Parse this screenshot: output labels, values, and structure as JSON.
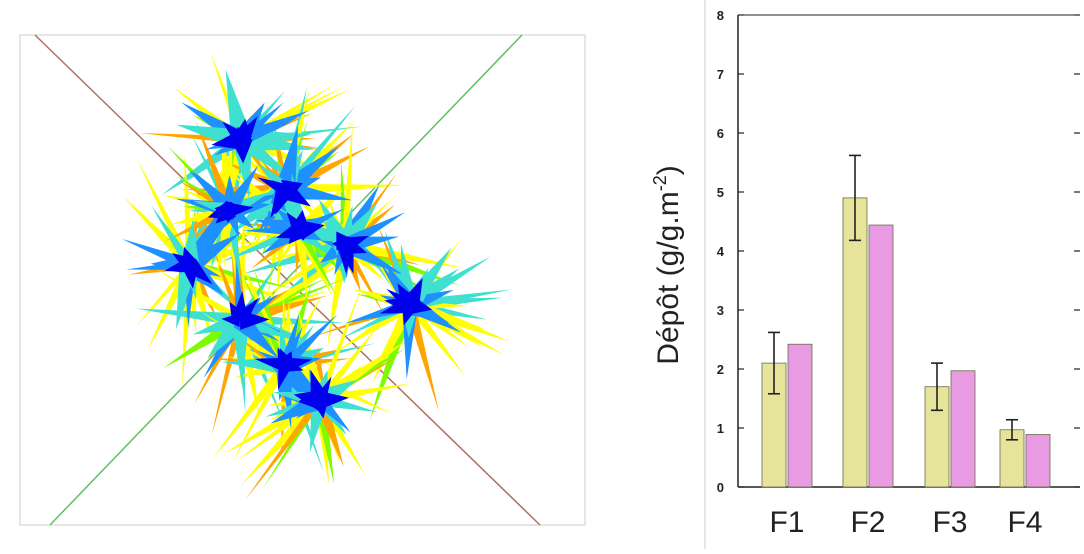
{
  "left_image": {
    "kind": "3D plant leaf rendering",
    "colors": [
      "#0000ee",
      "#1e90ff",
      "#40e0d0",
      "#7cfc00",
      "#ffff00",
      "#ffa500"
    ]
  },
  "chart_data": {
    "type": "bar",
    "categories": [
      "F1",
      "F2",
      "F3",
      "F4"
    ],
    "series": [
      {
        "values": [
          2.1,
          4.9,
          1.7,
          0.97
        ],
        "errors": [
          0.52,
          0.72,
          0.4,
          0.17
        ],
        "color": "#e5e49a"
      },
      {
        "values": [
          2.42,
          4.44,
          1.97,
          0.89
        ],
        "color": "#e89ae2"
      }
    ],
    "ylabel": "Dépôt (g/g.m-2)",
    "ylim": [
      0,
      8
    ],
    "yticks": [
      "0",
      "1",
      "2",
      "3",
      "4",
      "5",
      "6",
      "7",
      "8"
    ],
    "grid": false
  }
}
